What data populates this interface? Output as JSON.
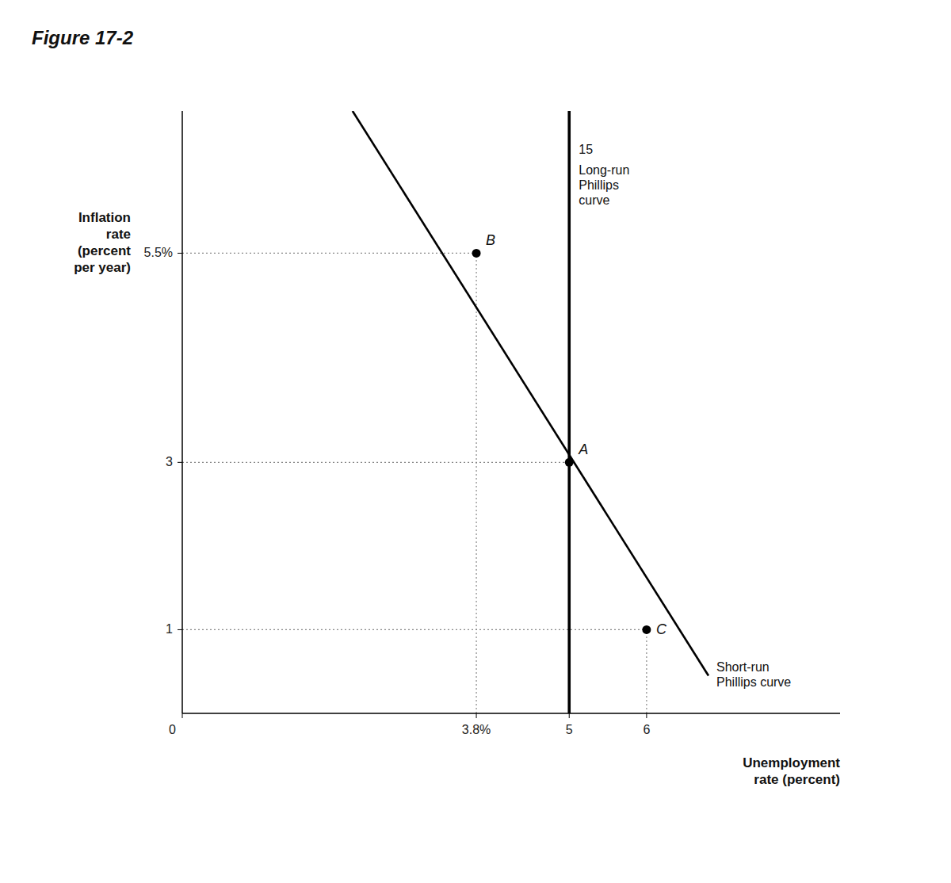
{
  "chart_data": {
    "type": "line",
    "title": "Figure 17-2",
    "x_label": "Unemployment\nrate (percent)",
    "y_label": "Inflation\nrate\n(percent\nper year)",
    "xlim": [
      0,
      8.5
    ],
    "ylim": [
      0,
      7.2
    ],
    "xticks": [
      0,
      {
        "value": 3.8,
        "label": "3.8%"
      },
      5,
      6
    ],
    "yticks": [
      1,
      3,
      {
        "value": 5.5,
        "label": "5.5%"
      }
    ],
    "series": [
      {
        "name": "Long-run\nPhillips\ncurve",
        "color": "#000000",
        "x": [
          5,
          5
        ],
        "values": [
          0,
          7.2
        ]
      },
      {
        "name": "Short-run\nPhillips curve",
        "color": "#000000",
        "x": [
          2.2,
          6.8
        ],
        "values": [
          7.2,
          0.45
        ]
      },
      {
        "type": "scatter",
        "color": "#000000",
        "x": [
          5,
          3.8,
          6
        ],
        "values": [
          3,
          5.5,
          1
        ],
        "point_labels": [
          "A",
          "B",
          "C"
        ]
      }
    ],
    "annotations": [
      "15"
    ]
  }
}
